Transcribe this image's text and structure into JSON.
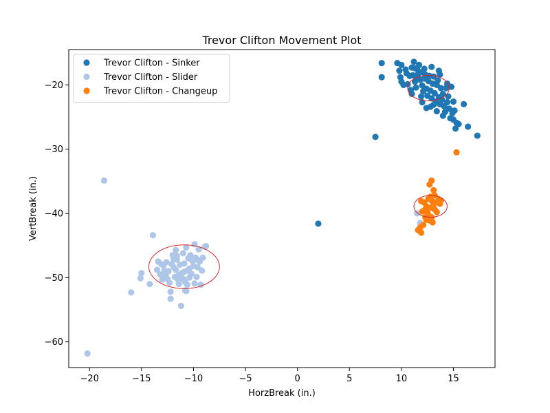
{
  "chart_data": {
    "type": "scatter",
    "title": "Trevor Clifton Movement Plot",
    "xlabel": "HorzBreak (in.)",
    "ylabel": "VertBreak (in.)",
    "xlim": [
      -22,
      19
    ],
    "ylim": [
      -64,
      -14.5
    ],
    "xticks": [
      -20,
      -15,
      -10,
      -5,
      0,
      5,
      10,
      15
    ],
    "yticks": [
      -60,
      -50,
      -40,
      -30,
      -20
    ],
    "grid": false,
    "legend_position": "top-left",
    "series": [
      {
        "name": "Trevor Clifton - Sinker",
        "color": "#1f77b4",
        "points": [
          [
            8.1,
            -16.6
          ],
          [
            8.1,
            -18.8
          ],
          [
            9.6,
            -16.6
          ],
          [
            10.0,
            -16.9
          ],
          [
            9.8,
            -17.8
          ],
          [
            9.9,
            -18.8
          ],
          [
            10.0,
            -19.5
          ],
          [
            10.2,
            -20.0
          ],
          [
            10.5,
            -18.2
          ],
          [
            10.8,
            -18.6
          ],
          [
            11.0,
            -17.3
          ],
          [
            11.1,
            -18.5
          ],
          [
            11.2,
            -16.4
          ],
          [
            11.3,
            -19.5
          ],
          [
            11.4,
            -20.4
          ],
          [
            11.5,
            -17.5
          ],
          [
            11.6,
            -18.3
          ],
          [
            11.8,
            -19.2
          ],
          [
            11.9,
            -18.0
          ],
          [
            12.0,
            -20.1
          ],
          [
            12.1,
            -21.0
          ],
          [
            12.2,
            -19.0
          ],
          [
            12.3,
            -18.4
          ],
          [
            12.4,
            -20.6
          ],
          [
            12.5,
            -21.7
          ],
          [
            12.6,
            -19.4
          ],
          [
            12.7,
            -18.6
          ],
          [
            12.8,
            -20.9
          ],
          [
            12.9,
            -22.1
          ],
          [
            13.0,
            -19.8
          ],
          [
            13.1,
            -18.7
          ],
          [
            13.2,
            -21.3
          ],
          [
            13.3,
            -22.6
          ],
          [
            13.4,
            -20.0
          ],
          [
            13.5,
            -19.3
          ],
          [
            13.6,
            -21.9
          ],
          [
            13.7,
            -23.0
          ],
          [
            13.8,
            -20.5
          ],
          [
            13.9,
            -22.3
          ],
          [
            14.0,
            -21.4
          ],
          [
            14.1,
            -23.3
          ],
          [
            14.2,
            -24.2
          ],
          [
            14.3,
            -20.5
          ],
          [
            14.4,
            -22.7
          ],
          [
            14.5,
            -21.8
          ],
          [
            14.6,
            -23.7
          ],
          [
            14.8,
            -20.3
          ],
          [
            14.9,
            -24.4
          ],
          [
            15.0,
            -25.4
          ],
          [
            15.1,
            -24.0
          ],
          [
            15.2,
            -26.8
          ],
          [
            15.3,
            -25.9
          ],
          [
            15.5,
            -26.1
          ],
          [
            15.0,
            -22.6
          ],
          [
            11.0,
            -21.4
          ],
          [
            11.9,
            -21.8
          ],
          [
            12.4,
            -23.6
          ],
          [
            13.4,
            -24.1
          ],
          [
            10.4,
            -17.6
          ],
          [
            10.9,
            -20.8
          ],
          [
            11.7,
            -16.9
          ],
          [
            12.9,
            -17.2
          ],
          [
            13.6,
            -17.8
          ],
          [
            12.2,
            -17.5
          ],
          [
            16.0,
            -23.0
          ],
          [
            16.4,
            -26.5
          ],
          [
            17.3,
            -27.9
          ],
          [
            7.5,
            -28.1
          ],
          [
            2.0,
            -41.6
          ],
          [
            11.3,
            -17.4
          ],
          [
            12.0,
            -22.7
          ],
          [
            13.1,
            -23.1
          ],
          [
            14.7,
            -25.2
          ],
          [
            10.6,
            -19.9
          ],
          [
            11.4,
            -18.9
          ],
          [
            12.5,
            -18.9
          ],
          [
            13.7,
            -18.4
          ],
          [
            14.4,
            -19.8
          ],
          [
            14.0,
            -24.8
          ],
          [
            12.8,
            -23.4
          ]
        ]
      },
      {
        "name": "Trevor Clifton - Slider",
        "color": "#aec7e8",
        "points": [
          [
            -20.2,
            -61.8
          ],
          [
            -18.6,
            -34.9
          ],
          [
            -16.0,
            -52.3
          ],
          [
            -15.1,
            -50.1
          ],
          [
            -15.0,
            -49.3
          ],
          [
            -14.2,
            -51.0
          ],
          [
            -13.9,
            -43.4
          ],
          [
            -13.5,
            -48.8
          ],
          [
            -13.4,
            -47.5
          ],
          [
            -13.2,
            -49.5
          ],
          [
            -13.0,
            -50.3
          ],
          [
            -12.9,
            -48.1
          ],
          [
            -12.6,
            -47.6
          ],
          [
            -12.4,
            -49.0
          ],
          [
            -12.3,
            -50.8
          ],
          [
            -12.2,
            -52.2
          ],
          [
            -12.2,
            -53.3
          ],
          [
            -12.0,
            -46.5
          ],
          [
            -11.9,
            -48.4
          ],
          [
            -11.8,
            -49.9
          ],
          [
            -11.7,
            -45.7
          ],
          [
            -11.6,
            -47.2
          ],
          [
            -11.5,
            -50.3
          ],
          [
            -11.4,
            -51.0
          ],
          [
            -11.3,
            -48.0
          ],
          [
            -11.2,
            -54.4
          ],
          [
            -11.1,
            -49.3
          ],
          [
            -11.0,
            -46.2
          ],
          [
            -10.9,
            -47.8
          ],
          [
            -10.8,
            -50.7
          ],
          [
            -10.8,
            -52.0
          ],
          [
            -10.7,
            -45.3
          ],
          [
            -10.6,
            -48.9
          ],
          [
            -10.5,
            -47.0
          ],
          [
            -10.4,
            -50.0
          ],
          [
            -10.3,
            -46.5
          ],
          [
            -10.2,
            -49.4
          ],
          [
            -10.0,
            -48.2
          ],
          [
            -9.9,
            -44.8
          ],
          [
            -9.8,
            -46.9
          ],
          [
            -9.7,
            -49.9
          ],
          [
            -9.6,
            -48.4
          ],
          [
            -9.5,
            -45.6
          ],
          [
            -9.4,
            -47.5
          ],
          [
            -9.3,
            -51.1
          ],
          [
            -9.2,
            -48.9
          ],
          [
            -9.1,
            -46.9
          ],
          [
            -8.9,
            -45.2
          ],
          [
            -8.8,
            -45.1
          ],
          [
            -12.8,
            -48.9
          ],
          [
            -12.1,
            -47.9
          ],
          [
            -11.4,
            -49.6
          ],
          [
            -10.9,
            -49.1
          ],
          [
            -10.4,
            -48.6
          ],
          [
            -11.7,
            -48.8
          ],
          [
            -12.5,
            -50.2
          ],
          [
            -10.6,
            -51.1
          ],
          [
            -11.9,
            -47.1
          ],
          [
            -9.9,
            -50.9
          ],
          [
            -13.1,
            -47.9
          ],
          [
            -11.0,
            -50.2
          ],
          [
            -10.1,
            -47.4
          ],
          [
            -11.6,
            -46.6
          ],
          [
            -12.7,
            -49.7
          ],
          [
            -9.6,
            -47.3
          ],
          [
            -10.7,
            -52.1
          ],
          [
            11.5,
            -40.0
          ],
          [
            11.8,
            -41.5
          ]
        ]
      },
      {
        "name": "Trevor Clifton - Changeup",
        "color": "#ff7f0e",
        "points": [
          [
            15.3,
            -30.5
          ],
          [
            12.9,
            -34.9
          ],
          [
            12.7,
            -35.5
          ],
          [
            13.1,
            -36.4
          ],
          [
            13.2,
            -37.2
          ],
          [
            12.6,
            -37.7
          ],
          [
            13.4,
            -38.2
          ],
          [
            12.9,
            -38.0
          ],
          [
            12.2,
            -38.3
          ],
          [
            11.9,
            -38.1
          ],
          [
            13.7,
            -38.5
          ],
          [
            13.6,
            -37.8
          ],
          [
            12.4,
            -38.9
          ],
          [
            13.2,
            -39.4
          ],
          [
            12.5,
            -39.9
          ],
          [
            12.9,
            -40.6
          ],
          [
            12.7,
            -41.1
          ],
          [
            13.0,
            -41.4
          ],
          [
            12.4,
            -41.0
          ],
          [
            12.1,
            -41.8
          ],
          [
            11.8,
            -42.2
          ],
          [
            11.6,
            -42.6
          ],
          [
            11.9,
            -43.0
          ],
          [
            12.3,
            -39.4
          ],
          [
            13.1,
            -38.6
          ],
          [
            12.6,
            -40.3
          ],
          [
            13.4,
            -39.8
          ],
          [
            12.8,
            -39.1
          ],
          [
            12.0,
            -39.7
          ],
          [
            13.8,
            -38.0
          ],
          [
            12.3,
            -40.6
          ],
          [
            12.8,
            -37.4
          ]
        ]
      }
    ],
    "ellipses": [
      {
        "series": "Trevor Clifton - Sinker",
        "center": [
          12.6,
          -20.5
        ],
        "rx": 2.0,
        "ry": 2.0,
        "color": "#d62728"
      },
      {
        "series": "Trevor Clifton - Slider",
        "center": [
          -10.9,
          -48.3
        ],
        "rx": 3.4,
        "ry": 3.4,
        "color": "#d62728"
      },
      {
        "series": "Trevor Clifton - Changeup",
        "center": [
          12.8,
          -38.9
        ],
        "rx": 1.6,
        "ry": 1.7,
        "color": "#d62728"
      }
    ]
  }
}
